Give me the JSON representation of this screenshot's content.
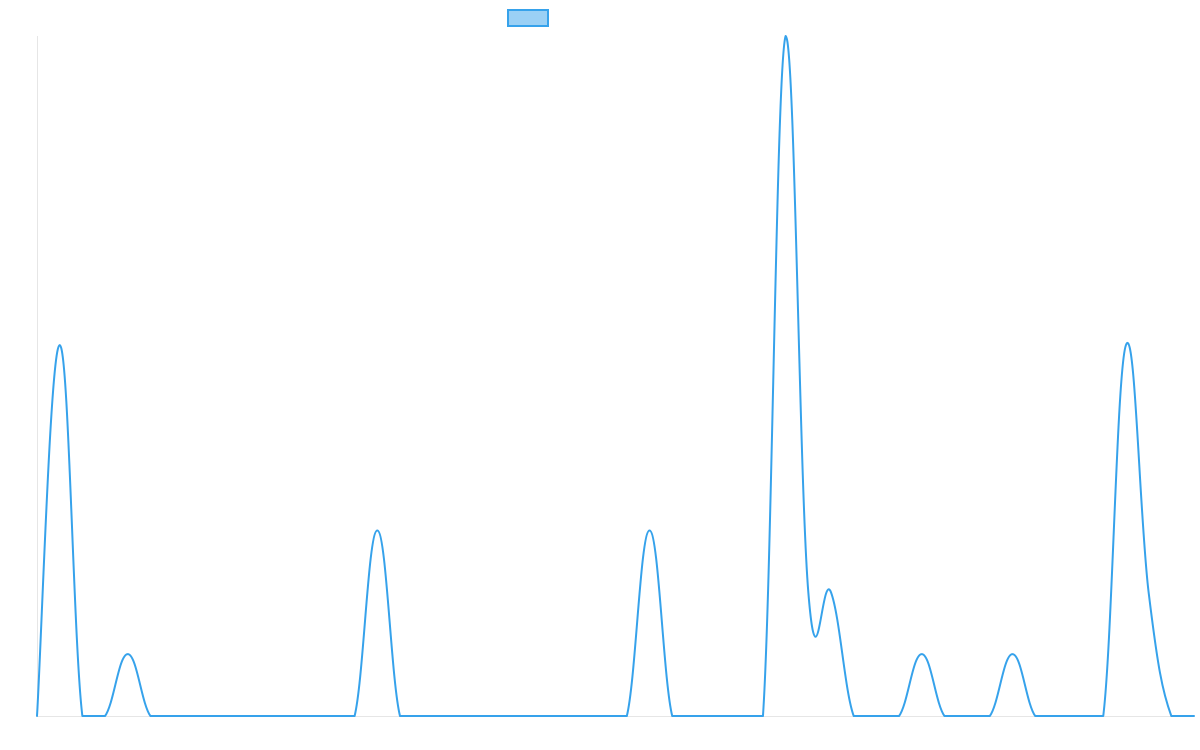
{
  "chart_data": {
    "type": "line",
    "title": "",
    "xlabel": "",
    "ylabel": "",
    "grid": false,
    "legend": "top-center",
    "x": [
      0,
      1,
      2,
      3,
      4,
      5,
      6,
      7,
      8,
      9,
      10,
      11,
      12,
      13,
      14,
      15,
      16,
      17,
      18,
      19,
      20,
      21,
      22,
      23,
      24,
      25,
      26,
      27,
      28,
      29,
      30,
      31,
      32,
      33,
      34,
      35,
      36,
      37,
      38,
      39,
      40,
      41,
      42,
      43,
      44,
      45,
      46,
      47,
      48,
      49,
      50,
      51
    ],
    "xlim": [
      0,
      51
    ],
    "ylim": [
      0,
      11
    ],
    "series": [
      {
        "name": "",
        "color": "#36a2eb",
        "fill": "#9ad0f5",
        "values": [
          0,
          6,
          0,
          0,
          1,
          0,
          0,
          0,
          0,
          0,
          0,
          0,
          0,
          0,
          0,
          3,
          0,
          0,
          0,
          0,
          0,
          0,
          0,
          0,
          0,
          0,
          0,
          3,
          0,
          0,
          0,
          0,
          0,
          11,
          2,
          2,
          0,
          0,
          0,
          1,
          0,
          0,
          0,
          1,
          0,
          0,
          0,
          0,
          6,
          2,
          0,
          0
        ]
      }
    ]
  }
}
